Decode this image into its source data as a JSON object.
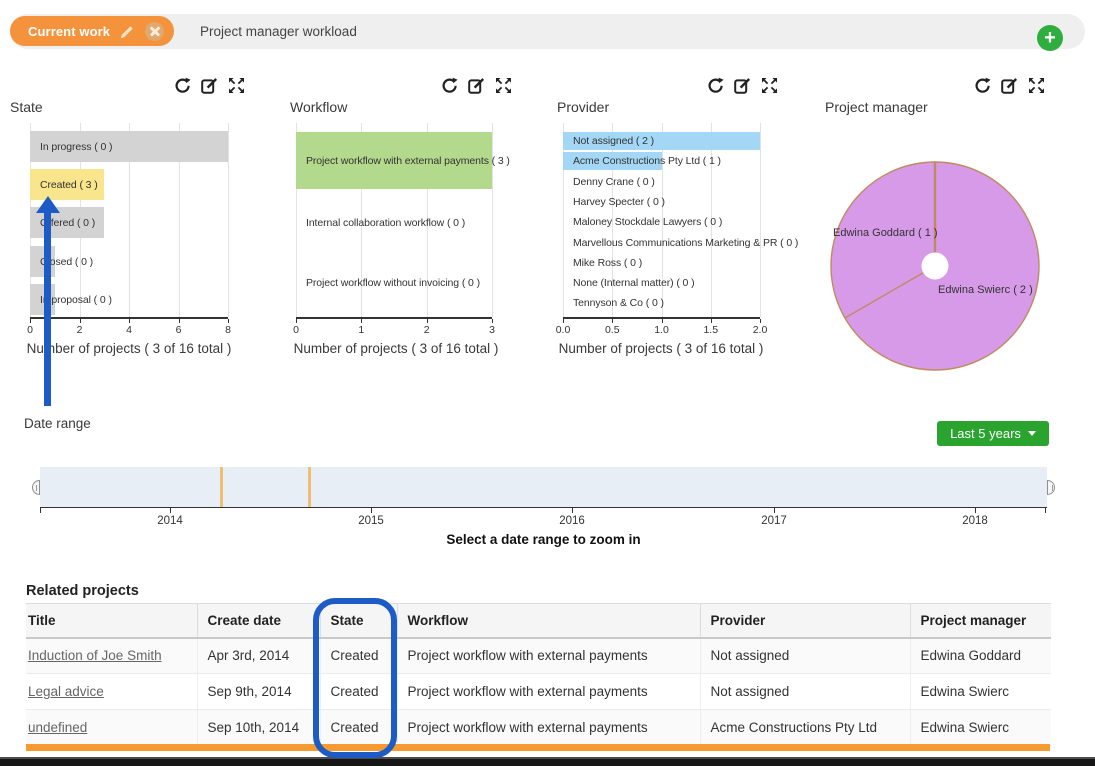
{
  "topbar": {
    "tab_label": "Current work",
    "title": "Project manager workload",
    "add_icon": "+"
  },
  "panel_icons": [
    "refresh-icon",
    "edit-icon",
    "fullscreen-icon"
  ],
  "chart_data": [
    {
      "type": "bar",
      "orientation": "horizontal",
      "title": "State",
      "categories": [
        "In progress ( 0 )",
        "Created ( 3 )",
        "Offered ( 0 )",
        "Closed ( 0 )",
        "In proposal ( 0 )"
      ],
      "values": [
        8,
        3,
        3,
        1,
        1
      ],
      "highlight_index": 1,
      "bar_color": "#d3d3d3",
      "highlight_color": "#f9e58b",
      "xlim": [
        0,
        8
      ],
      "xticks": [
        "0",
        "2",
        "4",
        "6",
        "8"
      ],
      "xlabel": "Number of projects ( 3 of 16 total )",
      "grid": true
    },
    {
      "type": "bar",
      "orientation": "horizontal",
      "title": "Workflow",
      "categories": [
        "Project workflow with external payments ( 3 )",
        "Internal collaboration workflow ( 0 )",
        "Project workflow without invoicing ( 0 )"
      ],
      "values": [
        3,
        0,
        0
      ],
      "bar_color": "#b3d98c",
      "xlim": [
        0,
        3
      ],
      "xticks": [
        "0",
        "1",
        "2",
        "3"
      ],
      "xlabel": "Number of projects ( 3 of 16 total )",
      "grid": true
    },
    {
      "type": "bar",
      "orientation": "horizontal",
      "title": "Provider",
      "categories": [
        "Not assigned ( 2 )",
        "Acme Constructions Pty Ltd ( 1 )",
        "Denny Crane ( 0 )",
        "Harvey Specter ( 0 )",
        "Maloney Stockdale Lawyers ( 0 )",
        "Marvellous Communications Marketing & PR ( 0 )",
        "Mike Ross ( 0 )",
        "None (Internal matter) ( 0 )",
        "Tennyson & Co ( 0 )"
      ],
      "values": [
        2,
        1,
        0,
        0,
        0,
        0,
        0,
        0,
        0
      ],
      "bar_color": "#a3d7f5",
      "xlim": [
        0,
        2
      ],
      "xticks": [
        "0.0",
        "0.5",
        "1.0",
        "1.5",
        "2.0"
      ],
      "xlabel": "Number of projects ( 3 of 16 total )",
      "grid": true
    },
    {
      "type": "pie",
      "title": "Project manager",
      "labels": [
        "Edwina Swierc ( 2 )",
        "Edwina Goddard ( 1 )"
      ],
      "values": [
        2,
        1
      ],
      "slice_color": "#d79ae8",
      "line_color": "#c08a5e",
      "hole_color": "#ffffff"
    }
  ],
  "date_range": {
    "label": "Date range",
    "range_button": "Last 5 years",
    "years": [
      "2014",
      "2015",
      "2016",
      "2017",
      "2018"
    ],
    "marker_positions_pct": [
      17.9,
      26.6
    ],
    "hint": "Select a date range to zoom in"
  },
  "related_projects": {
    "heading": "Related projects",
    "columns": [
      "Title",
      "Create date",
      "State",
      "Workflow",
      "Provider",
      "Project manager"
    ],
    "rows": [
      {
        "title": "Induction of Joe Smith",
        "create_date": "Apr 3rd, 2014",
        "state": "Created",
        "workflow": "Project workflow with external payments",
        "provider": "Not assigned",
        "project_manager": "Edwina Goddard"
      },
      {
        "title": "Legal advice",
        "create_date": "Sep 9th, 2014",
        "state": "Created",
        "workflow": "Project workflow with external payments",
        "provider": "Not assigned",
        "project_manager": "Edwina Swierc"
      },
      {
        "title": "undefined",
        "create_date": "Sep 10th, 2014",
        "state": "Created",
        "workflow": "Project workflow with external payments",
        "provider": "Acme Constructions Pty Ltd",
        "project_manager": "Edwina Swierc"
      }
    ]
  },
  "colors": {
    "tab_orange": "#f5923c",
    "add_green": "#2fad3e",
    "button_green": "#2ba32f",
    "annotation_blue": "#1d5cc6",
    "scrollbar_orange": "#f59b31",
    "timeline_band": "#e8eef5",
    "timeline_marker": "#efbe72"
  }
}
